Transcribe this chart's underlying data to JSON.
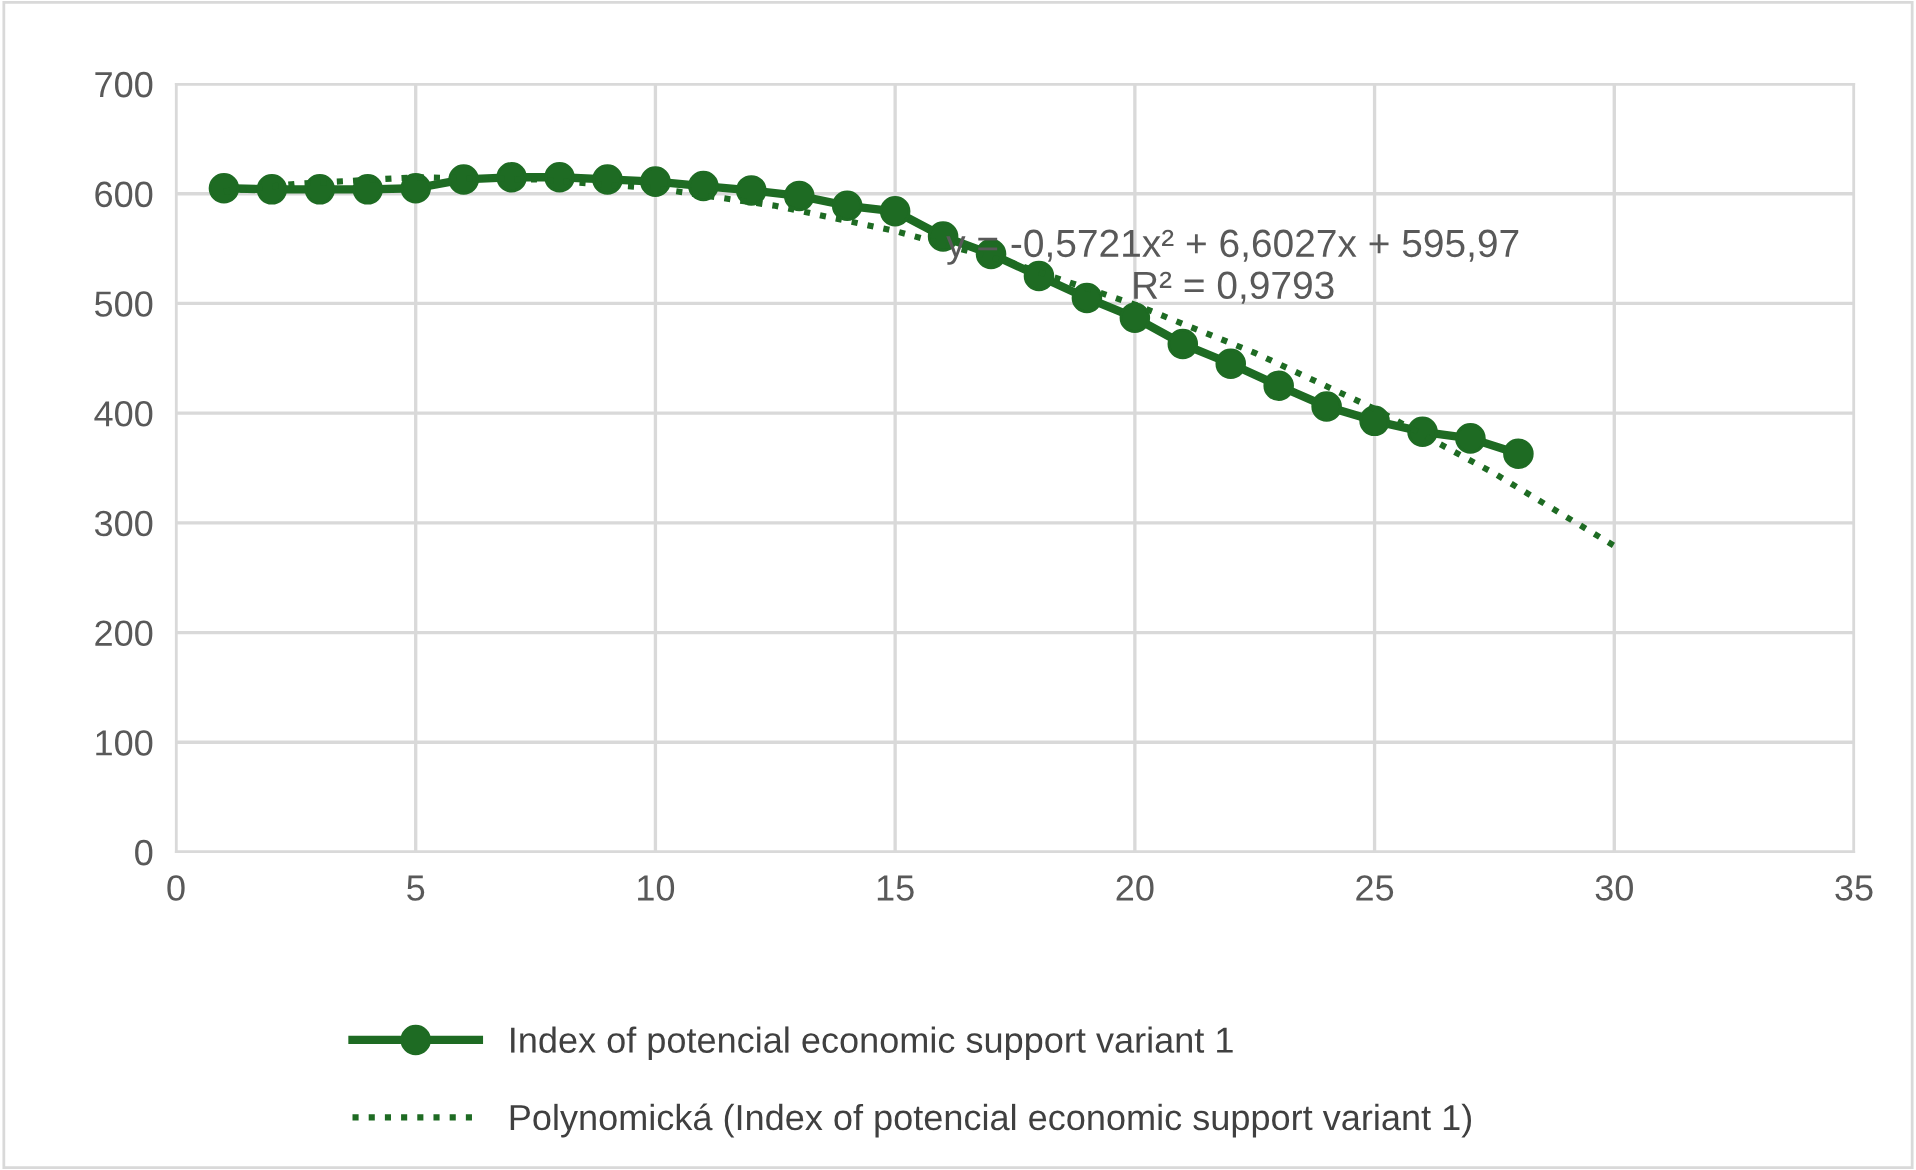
{
  "chart_data": {
    "type": "line",
    "xlim": [
      0,
      35
    ],
    "xticks": [
      0,
      5,
      10,
      15,
      20,
      25,
      30,
      35
    ],
    "ylim": [
      0,
      700
    ],
    "yticks": [
      0,
      100,
      200,
      300,
      400,
      500,
      600,
      700
    ],
    "grid": true,
    "legend": "bottom",
    "series": [
      {
        "name": "Index of potencial economic support variant 1",
        "color": "#1e6b23",
        "marker": "circle",
        "line_style": "solid",
        "x": [
          1,
          2,
          3,
          4,
          5,
          6,
          7,
          8,
          9,
          10,
          11,
          12,
          13,
          14,
          15,
          16,
          17,
          18,
          19,
          20,
          21,
          22,
          23,
          24,
          25,
          26,
          27,
          28
        ],
        "values": [
          605,
          604,
          604,
          604,
          605,
          613,
          615,
          615,
          613,
          611,
          607,
          603,
          598,
          589,
          584,
          561,
          545,
          525,
          505,
          487,
          463,
          445,
          425,
          406,
          393,
          383,
          377,
          363
        ]
      },
      {
        "name": "Polynomická (Index of potencial economic support variant 1)",
        "color": "#1e6b23",
        "marker": "none",
        "line_style": "dotted",
        "x": [
          1,
          2.5,
          5,
          7.5,
          10,
          12.5,
          15,
          17.5,
          20,
          22.5,
          25,
          27.5,
          30
        ],
        "values": [
          602,
          609,
          615,
          613,
          605,
          589,
          566,
          536,
          499,
          455,
          404,
          345,
          279
        ]
      }
    ],
    "annotations": [
      "y = -0,5721x² + 6,6027x + 595,97\nR² = 0,9793"
    ]
  }
}
